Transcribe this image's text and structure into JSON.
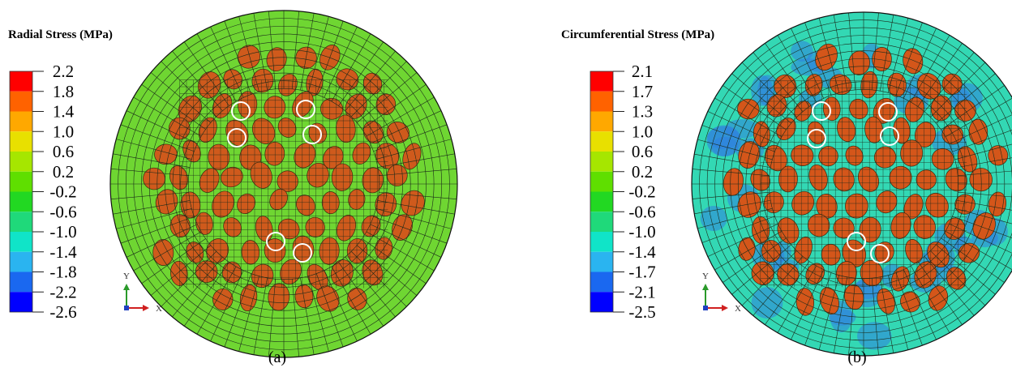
{
  "panels": [
    {
      "title": "Radial Stress (MPa)",
      "legend_labels": [
        "2.2",
        "1.8",
        "1.4",
        "1.0",
        "0.6",
        "0.2",
        "-0.2",
        "-0.6",
        "-1.0",
        "-1.4",
        "-1.8",
        "-2.2",
        "-2.6"
      ],
      "axis_y": "Y",
      "axis_x": "X",
      "label": "(a)"
    },
    {
      "title": "Circumferential Stress (MPa)",
      "legend_labels": [
        "2.1",
        "1.7",
        "1.3",
        "1.0",
        "0.6",
        "0.2",
        "-0.2",
        "-0.6",
        "-1.0",
        "-1.4",
        "-1.7",
        "-2.1",
        "-2.5"
      ],
      "axis_y": "Y",
      "axis_x": "X",
      "label": "(b)"
    }
  ]
}
